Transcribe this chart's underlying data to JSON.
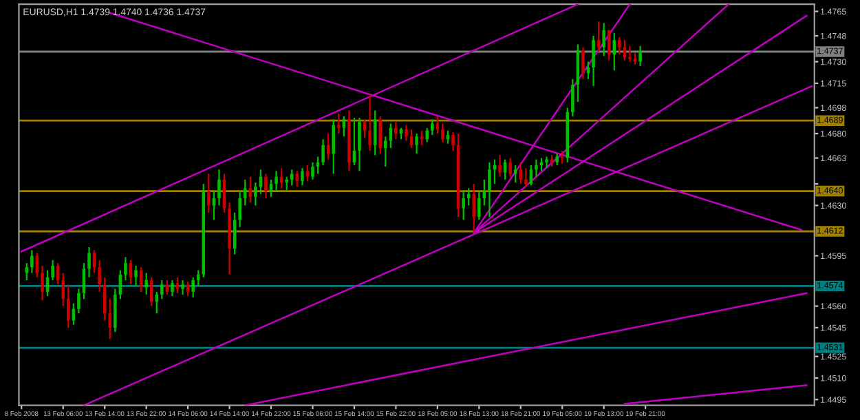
{
  "chart_data": {
    "type": "candlestick",
    "title": "EURUSD,H1 1.4739 1.4740 1.4736 1.4737",
    "categories": [
      "8 Feb 2008",
      null,
      null,
      null,
      null,
      null,
      null,
      null,
      "13 Feb 06:00",
      null,
      null,
      null,
      null,
      null,
      null,
      null,
      "13 Feb 14:00",
      null,
      null,
      null,
      null,
      null,
      null,
      null,
      "13 Feb 22:00",
      null,
      null,
      null,
      null,
      null,
      null,
      null,
      "14 Feb 06:00",
      null,
      null,
      null,
      null,
      null,
      null,
      null,
      "14 Feb 14:00",
      null,
      null,
      null,
      null,
      null,
      null,
      null,
      "14 Feb 22:00",
      null,
      null,
      null,
      null,
      null,
      null,
      null,
      "15 Feb 06:00",
      null,
      null,
      null,
      null,
      null,
      null,
      null,
      "15 Feb 14:00",
      null,
      null,
      null,
      null,
      null,
      null,
      null,
      "15 Feb 22:00",
      null,
      null,
      null,
      null,
      null,
      null,
      null,
      "18 Feb 05:00",
      null,
      null,
      null,
      null,
      null,
      null,
      null,
      "18 Feb 13:00",
      null,
      null,
      null,
      null,
      null,
      null,
      null,
      "18 Feb 21:00",
      null,
      null,
      null,
      null,
      null,
      null,
      null,
      "19 Feb 05:00",
      null,
      null,
      null,
      null,
      null,
      null,
      null,
      "19 Feb 13:00",
      null,
      null,
      null,
      null,
      null,
      null,
      null,
      "19 Feb 21:00",
      null,
      null,
      null,
      null,
      null,
      null,
      null,
      null,
      null,
      null,
      null,
      null,
      null,
      null,
      null,
      null,
      null,
      null,
      null,
      null,
      null,
      null,
      null,
      null,
      null,
      null,
      null,
      null,
      null,
      null,
      null,
      null
    ],
    "ohlc": [
      null,
      [
        1.4583,
        1.459,
        1.4578,
        1.4587
      ],
      [
        1.4587,
        1.4599,
        1.4583,
        1.4595
      ],
      [
        1.4595,
        1.4597,
        1.458,
        1.4583
      ],
      [
        1.4583,
        1.4588,
        1.4564,
        1.457
      ],
      [
        1.457,
        1.4585,
        1.4567,
        1.458
      ],
      [
        1.458,
        1.4592,
        1.4578,
        1.4588
      ],
      [
        1.4588,
        1.459,
        1.4575,
        1.4578
      ],
      [
        1.4578,
        1.4583,
        1.456,
        1.4565
      ],
      [
        1.4565,
        1.4575,
        1.4545,
        1.455
      ],
      [
        1.455,
        1.4562,
        1.4547,
        1.4558
      ],
      [
        1.4558,
        1.4572,
        1.4555,
        1.4569
      ],
      [
        1.4569,
        1.459,
        1.4565,
        1.4586
      ],
      [
        1.4586,
        1.4601,
        1.458,
        1.4597
      ],
      [
        1.4597,
        1.4599,
        1.4583,
        1.4587
      ],
      [
        1.4587,
        1.4592,
        1.457,
        1.4575
      ],
      [
        1.4575,
        1.458,
        1.455,
        1.4555
      ],
      [
        1.4555,
        1.4565,
        1.4537,
        1.4545
      ],
      [
        1.4545,
        1.4572,
        1.4542,
        1.4568
      ],
      [
        1.4568,
        1.4585,
        1.4565,
        1.4582
      ],
      [
        1.4582,
        1.4594,
        1.4578,
        1.459
      ],
      [
        1.459,
        1.4592,
        1.4575,
        1.458
      ],
      [
        1.458,
        1.4588,
        1.4574,
        1.4585
      ],
      [
        1.4585,
        1.4587,
        1.457,
        1.4573
      ],
      [
        1.4573,
        1.4583,
        1.4568,
        1.4578
      ],
      [
        1.4578,
        1.458,
        1.456,
        1.4563
      ],
      [
        1.4563,
        1.457,
        1.4555,
        1.4568
      ],
      [
        1.4568,
        1.4578,
        1.4565,
        1.4575
      ],
      [
        1.4575,
        1.4578,
        1.4568,
        1.457
      ],
      [
        1.457,
        1.4578,
        1.4567,
        1.4576
      ],
      [
        1.4576,
        1.458,
        1.4569,
        1.4572
      ],
      [
        1.4572,
        1.4578,
        1.4568,
        1.4575
      ],
      [
        1.4575,
        1.4577,
        1.4567,
        1.457
      ],
      [
        1.457,
        1.458,
        1.4566,
        1.4578
      ],
      [
        1.4578,
        1.4585,
        1.4574,
        1.4582
      ],
      [
        1.4582,
        1.4645,
        1.458,
        1.464
      ],
      [
        1.464,
        1.4652,
        1.4625,
        1.463
      ],
      [
        1.463,
        1.464,
        1.462,
        1.4635
      ],
      [
        1.4635,
        1.4655,
        1.463,
        1.4648
      ],
      [
        1.4648,
        1.4652,
        1.4625,
        1.4628
      ],
      [
        1.4628,
        1.4632,
        1.4582,
        1.46
      ],
      [
        1.46,
        1.4625,
        1.4596,
        1.462
      ],
      [
        1.462,
        1.464,
        1.4615,
        1.4635
      ],
      [
        1.4635,
        1.4648,
        1.463,
        1.4642
      ],
      [
        1.4642,
        1.465,
        1.4632,
        1.4636
      ],
      [
        1.4636,
        1.4646,
        1.463,
        1.4643
      ],
      [
        1.4643,
        1.4655,
        1.4638,
        1.465
      ],
      [
        1.465,
        1.4652,
        1.4635,
        1.464
      ],
      [
        1.464,
        1.4648,
        1.4636,
        1.4645
      ],
      [
        1.4645,
        1.4654,
        1.464,
        1.465
      ],
      [
        1.465,
        1.4656,
        1.4642,
        1.4646
      ],
      [
        1.4646,
        1.465,
        1.464,
        1.4648
      ],
      [
        1.4648,
        1.4655,
        1.4644,
        1.4652
      ],
      [
        1.4652,
        1.4654,
        1.4643,
        1.4647
      ],
      [
        1.4647,
        1.4656,
        1.4644,
        1.4654
      ],
      [
        1.4654,
        1.4658,
        1.4647,
        1.465
      ],
      [
        1.465,
        1.466,
        1.4648,
        1.4657
      ],
      [
        1.4657,
        1.4664,
        1.4652,
        1.466
      ],
      [
        1.466,
        1.4676,
        1.4658,
        1.4672
      ],
      [
        1.4672,
        1.468,
        1.4662,
        1.4666
      ],
      [
        1.4666,
        1.469,
        1.4652,
        1.4686
      ],
      [
        1.4686,
        1.4694,
        1.468,
        1.4684
      ],
      [
        1.4684,
        1.4692,
        1.4678,
        1.469
      ],
      [
        1.469,
        1.4696,
        1.4654,
        1.466
      ],
      [
        1.466,
        1.4691,
        1.4658,
        1.4668
      ],
      [
        1.4668,
        1.4691,
        1.4654,
        1.4688
      ],
      [
        1.4688,
        1.469,
        1.4677,
        1.4682
      ],
      [
        1.4682,
        1.4707,
        1.4668,
        1.4672
      ],
      [
        1.4672,
        1.4696,
        1.4665,
        1.469
      ],
      [
        1.469,
        1.4692,
        1.4666,
        1.467
      ],
      [
        1.467,
        1.4678,
        1.4657,
        1.4675
      ],
      [
        1.4675,
        1.4687,
        1.467,
        1.4684
      ],
      [
        1.4684,
        1.4688,
        1.4676,
        1.468
      ],
      [
        1.468,
        1.4684,
        1.4676,
        1.4683
      ],
      [
        1.4683,
        1.4686,
        1.4675,
        1.4678
      ],
      [
        1.4678,
        1.4683,
        1.467,
        1.4672
      ],
      [
        1.4672,
        1.468,
        1.4666,
        1.4678
      ],
      [
        1.4678,
        1.4682,
        1.4672,
        1.4676
      ],
      [
        1.4676,
        1.4684,
        1.4674,
        1.4682
      ],
      [
        1.4682,
        1.469,
        1.4679,
        1.4687
      ],
      [
        1.4687,
        1.4692,
        1.468,
        1.4683
      ],
      [
        1.4683,
        1.4687,
        1.4674,
        1.4676
      ],
      [
        1.4676,
        1.4682,
        1.4673,
        1.4679
      ],
      [
        1.4679,
        1.4681,
        1.4668,
        1.4672
      ],
      [
        1.4672,
        1.468,
        1.4622,
        1.4628
      ],
      [
        1.4628,
        1.464,
        1.462,
        1.4635
      ],
      [
        1.4635,
        1.4642,
        1.463,
        1.4638
      ],
      [
        1.4638,
        1.4645,
        1.4611,
        1.4622
      ],
      [
        1.4622,
        1.464,
        1.462,
        1.4635
      ],
      [
        1.4635,
        1.4648,
        1.463,
        1.464
      ],
      [
        1.464,
        1.466,
        1.4622,
        1.4655
      ],
      [
        1.4655,
        1.4662,
        1.4645,
        1.4658
      ],
      [
        1.4658,
        1.4665,
        1.465,
        1.4653
      ],
      [
        1.4653,
        1.4662,
        1.4648,
        1.466
      ],
      [
        1.466,
        1.4663,
        1.465,
        1.4652
      ],
      [
        1.4652,
        1.4658,
        1.4646,
        1.4655
      ],
      [
        1.4655,
        1.466,
        1.4645,
        1.4648
      ],
      [
        1.4648,
        1.4656,
        1.4643,
        1.4645
      ],
      [
        1.4645,
        1.4658,
        1.4644,
        1.4655
      ],
      [
        1.4655,
        1.4662,
        1.465,
        1.4658
      ],
      [
        1.4658,
        1.4663,
        1.4654,
        1.466
      ],
      [
        1.466,
        1.4664,
        1.4656,
        1.4662
      ],
      [
        1.4662,
        1.4665,
        1.4657,
        1.466
      ],
      [
        1.466,
        1.4666,
        1.4658,
        1.4664
      ],
      [
        1.4664,
        1.4668,
        1.4659,
        1.4663
      ],
      [
        1.4663,
        1.4698,
        1.466,
        1.4695
      ],
      [
        1.4695,
        1.4718,
        1.4692,
        1.4714
      ],
      [
        1.4714,
        1.4742,
        1.4702,
        1.4738
      ],
      [
        1.4738,
        1.474,
        1.4718,
        1.4722
      ],
      [
        1.4722,
        1.473,
        1.4718,
        1.4726
      ],
      [
        1.4726,
        1.4748,
        1.4713,
        1.4745
      ],
      [
        1.4745,
        1.4758,
        1.4737,
        1.474
      ],
      [
        1.474,
        1.4757,
        1.4734,
        1.4752
      ],
      [
        1.4752,
        1.4752,
        1.4731,
        1.4735
      ],
      [
        1.4735,
        1.475,
        1.4724,
        1.4745
      ],
      [
        1.4745,
        1.4747,
        1.4735,
        1.474
      ],
      [
        1.474,
        1.4745,
        1.4731,
        1.4733
      ],
      [
        1.4733,
        1.4741,
        1.473,
        1.4732
      ],
      [
        1.4732,
        1.4736,
        1.4728,
        1.473
      ],
      [
        1.473,
        1.4741,
        1.4727,
        1.4737
      ],
      null,
      null,
      null,
      null,
      null,
      null,
      null,
      null,
      null,
      null,
      null,
      null,
      null,
      null,
      null,
      null,
      null,
      null,
      null,
      null,
      null,
      null,
      null,
      null,
      null,
      null,
      null,
      null,
      null,
      null,
      null,
      null,
      null
    ],
    "colors": [
      null,
      "#00c000",
      "#00c000",
      "#d00000",
      "#d00000",
      "#00c000",
      "#00c000",
      "#d00000",
      "#d00000",
      "#d00000",
      "#00c000",
      "#00c000",
      "#00c000",
      "#00c000",
      "#d00000",
      "#d00000",
      "#d00000",
      "#d00000",
      "#00c000",
      "#00c000",
      "#00c000",
      "#d00000",
      "#00c000",
      "#d00000",
      "#00c000",
      "#d00000",
      "#00c000",
      "#00c000",
      "#d00000",
      "#00c000",
      "#d00000",
      "#00c000",
      "#d00000",
      "#00c000",
      "#00c000",
      "#00c000",
      "#d00000",
      "#00c000",
      "#00c000",
      "#d00000",
      "#d00000",
      "#00c000",
      "#00c000",
      "#00c000",
      "#d00000",
      "#00c000",
      "#00c000",
      "#d00000",
      "#00c000",
      "#00c000",
      "#d00000",
      "#00c000",
      "#00c000",
      "#d00000",
      "#00c000",
      "#d00000",
      "#00c000",
      "#00c000",
      "#00c000",
      "#d00000",
      "#00c000",
      "#d00000",
      "#00c000",
      "#d00000",
      "#00c000",
      "#00c000",
      "#d00000",
      "#d00000",
      "#00c000",
      "#d00000",
      "#00c000",
      "#00c000",
      "#d00000",
      "#00c000",
      "#d00000",
      "#d00000",
      "#00c000",
      "#d00000",
      "#00c000",
      "#00c000",
      "#d00000",
      "#d00000",
      "#00c000",
      "#d00000",
      "#d00000",
      "#00c000",
      "#00c000",
      "#d00000",
      "#00c000",
      "#00c000",
      "#00c000",
      "#00c000",
      "#d00000",
      "#00c000",
      "#d00000",
      "#00c000",
      "#d00000",
      "#d00000",
      "#00c000",
      "#00c000",
      "#00c000",
      "#00c000",
      "#d00000",
      "#00c000",
      "#d00000",
      "#00c000",
      "#00c000",
      "#00c000",
      "#d00000",
      "#00c000",
      "#00c000",
      "#d00000",
      "#00c000",
      "#d00000",
      "#00c000",
      "#d00000",
      "#d00000",
      "#d00000",
      "#d00000",
      "#00c000",
      null,
      null,
      null,
      null,
      null,
      null,
      null,
      null,
      null,
      null,
      null,
      null,
      null,
      null,
      null,
      null,
      null,
      null,
      null,
      null,
      null,
      null,
      null,
      null,
      null,
      null,
      null,
      null,
      null,
      null,
      null,
      null,
      null
    ],
    "series": [
      {
        "type": "line",
        "color": "#c000c0",
        "values": [
          null,
          null,
          null,
          null,
          null,
          null,
          null,
          null,
          null,
          null,
          null,
          null,
          null,
          null,
          null,
          null,
          null,
          1.4764,
          null,
          null,
          null,
          null,
          null,
          null,
          null,
          null,
          null,
          null,
          null,
          null,
          null,
          null,
          null,
          null,
          null,
          null,
          null,
          null,
          null,
          null,
          null,
          null,
          null,
          null,
          null,
          null,
          null,
          null,
          null,
          null,
          null,
          null,
          null,
          null,
          null,
          null,
          null,
          null,
          null,
          null,
          null,
          null,
          null,
          null,
          null,
          null,
          null,
          null,
          null,
          null,
          null,
          null,
          null,
          null,
          null,
          null,
          null,
          null,
          null,
          null,
          null,
          null,
          null,
          null,
          null,
          null,
          null,
          null,
          null,
          null,
          null,
          null,
          null,
          null,
          null,
          null,
          null,
          null,
          null,
          null,
          null,
          null,
          null,
          null,
          null,
          null,
          null,
          null,
          null,
          null,
          null,
          null,
          null,
          null,
          null,
          null,
          null,
          null,
          null,
          null,
          null,
          null,
          null,
          null,
          null,
          null,
          null,
          null,
          null,
          null,
          null,
          null,
          null,
          null,
          null,
          null,
          null,
          null,
          null,
          null,
          null,
          null,
          null,
          null,
          null,
          null,
          null,
          null,
          null,
          null,
          1.4613,
          null,
          null
        ]
      },
      {
        "type": "line",
        "color": "#c000c0",
        "values": [
          1.4598,
          null,
          null,
          null,
          null,
          null,
          null,
          null,
          null,
          null,
          null,
          null,
          null,
          null,
          null,
          null,
          null,
          null,
          null,
          null,
          null,
          null,
          null,
          null,
          null,
          null,
          null,
          null,
          null,
          null,
          null,
          null,
          null,
          null,
          null,
          null,
          null,
          null,
          null,
          null,
          null,
          null,
          null,
          null,
          null,
          null,
          null,
          null,
          null,
          null,
          null,
          null,
          null,
          null,
          null,
          null,
          null,
          null,
          null,
          null,
          null,
          null,
          null,
          null,
          null,
          null,
          null,
          null,
          null,
          null,
          null,
          null,
          null,
          null,
          null,
          null,
          null,
          null,
          null,
          null,
          null,
          null,
          null,
          null,
          null,
          null,
          null,
          null,
          null,
          null,
          null,
          null,
          null,
          null,
          null,
          null,
          null,
          null,
          null,
          null,
          null,
          null,
          null,
          null,
          null,
          null,
          null,
          1.477,
          null,
          null,
          null,
          null,
          null,
          null,
          null,
          null,
          null,
          null,
          null,
          null,
          null,
          null,
          null,
          null,
          null,
          null,
          null,
          null,
          null,
          null,
          null,
          null,
          null,
          null,
          null,
          null,
          null,
          null,
          null,
          null,
          null,
          null,
          null,
          null,
          null,
          null,
          null,
          null,
          null,
          null,
          null,
          null,
          null
        ]
      },
      {
        "type": "line",
        "color": "#c000c0",
        "values": [
          null,
          null,
          null,
          null,
          null,
          null,
          null,
          null,
          null,
          null,
          null,
          null,
          1.4491,
          null,
          null,
          null,
          null,
          null,
          null,
          null,
          null,
          null,
          null,
          null,
          null,
          null,
          null,
          null,
          null,
          null,
          null,
          null,
          null,
          null,
          null,
          null,
          null,
          null,
          null,
          null,
          null,
          null,
          null,
          null,
          null,
          null,
          null,
          null,
          null,
          null,
          null,
          null,
          null,
          null,
          null,
          null,
          null,
          null,
          null,
          null,
          null,
          null,
          null,
          null,
          null,
          null,
          null,
          null,
          null,
          null,
          null,
          null,
          null,
          null,
          null,
          null,
          null,
          null,
          null,
          null,
          null,
          null,
          null,
          null,
          null,
          null,
          null,
          null,
          null,
          null,
          null,
          null,
          null,
          null,
          null,
          null,
          null,
          null,
          null,
          null,
          null,
          null,
          null,
          null,
          null,
          null,
          null,
          null,
          null,
          null,
          null,
          null,
          null,
          null,
          null,
          null,
          null,
          null,
          null,
          null,
          null,
          null,
          null,
          null,
          null,
          null,
          null,
          null,
          null,
          null,
          null,
          null,
          null,
          null,
          null,
          null,
          null,
          null,
          null,
          null,
          null,
          null,
          null,
          null,
          null,
          null,
          null,
          null,
          null,
          null,
          null,
          null,
          1.4713
        ]
      },
      {
        "type": "line",
        "color": "#c000c0",
        "values": [
          null,
          null,
          null,
          null,
          null,
          null,
          null,
          null,
          null,
          null,
          null,
          null,
          null,
          null,
          null,
          null,
          null,
          null,
          null,
          null,
          null,
          null,
          null,
          null,
          null,
          null,
          null,
          null,
          null,
          null,
          null,
          null,
          null,
          null,
          null,
          null,
          null,
          null,
          null,
          null,
          null,
          null,
          null,
          null,
          null,
          null,
          null,
          null,
          null,
          null,
          null,
          null,
          null,
          null,
          null,
          null,
          null,
          null,
          null,
          null,
          null,
          null,
          null,
          null,
          null,
          null,
          null,
          null,
          null,
          null,
          null,
          null,
          null,
          null,
          null,
          null,
          null,
          null,
          null,
          null,
          null,
          null,
          null,
          null,
          null,
          null,
          null,
          1.4611,
          null,
          null,
          null,
          null,
          null,
          null,
          null,
          null,
          null,
          null,
          null,
          null,
          null,
          null,
          null,
          null,
          null,
          null,
          null,
          null,
          null,
          null,
          null,
          null,
          null,
          null,
          null,
          null,
          null,
          1.477,
          null,
          null,
          null,
          null,
          null,
          null,
          null,
          null,
          null,
          null,
          null,
          null,
          null,
          null,
          null,
          null,
          null,
          null,
          null,
          null,
          null,
          null,
          null,
          null,
          null,
          null,
          null,
          null,
          null,
          null,
          null,
          null,
          null,
          null,
          null
        ]
      },
      {
        "type": "line",
        "color": "#c000c0",
        "values": [
          null,
          null,
          null,
          null,
          null,
          null,
          null,
          null,
          null,
          null,
          null,
          null,
          null,
          null,
          null,
          null,
          null,
          null,
          null,
          null,
          null,
          null,
          null,
          null,
          null,
          null,
          null,
          null,
          null,
          null,
          null,
          null,
          null,
          null,
          null,
          null,
          null,
          null,
          null,
          null,
          null,
          null,
          null,
          null,
          null,
          null,
          null,
          null,
          null,
          null,
          null,
          null,
          null,
          null,
          null,
          null,
          null,
          null,
          null,
          null,
          null,
          null,
          null,
          null,
          null,
          null,
          null,
          null,
          null,
          null,
          null,
          null,
          null,
          null,
          null,
          null,
          null,
          null,
          null,
          null,
          null,
          null,
          null,
          null,
          null,
          null,
          null,
          1.4611,
          null,
          null,
          null,
          null,
          null,
          null,
          null,
          null,
          null,
          null,
          null,
          null,
          null,
          null,
          null,
          null,
          null,
          null,
          null,
          null,
          null,
          null,
          null,
          null,
          null,
          null,
          null,
          null,
          null,
          null,
          null,
          null,
          null,
          null,
          null,
          null,
          null,
          null,
          null,
          null,
          null,
          null,
          null,
          null,
          null,
          null,
          null,
          null,
          1.477,
          null,
          null,
          null,
          null,
          null,
          null,
          null,
          null,
          null,
          null,
          null,
          null,
          null,
          null,
          null,
          null
        ]
      },
      {
        "type": "line",
        "color": "#c000c0",
        "values": [
          null,
          null,
          null,
          null,
          null,
          null,
          null,
          null,
          null,
          null,
          null,
          null,
          null,
          null,
          null,
          null,
          null,
          null,
          null,
          null,
          null,
          null,
          null,
          null,
          null,
          null,
          null,
          null,
          null,
          null,
          null,
          null,
          null,
          null,
          null,
          null,
          null,
          null,
          null,
          null,
          null,
          null,
          null,
          null,
          null,
          null,
          null,
          null,
          null,
          null,
          null,
          null,
          null,
          null,
          null,
          null,
          null,
          null,
          null,
          null,
          null,
          null,
          null,
          null,
          null,
          null,
          null,
          null,
          null,
          null,
          null,
          null,
          null,
          null,
          null,
          null,
          null,
          null,
          null,
          null,
          null,
          null,
          null,
          null,
          null,
          null,
          null,
          1.4611,
          null,
          null,
          null,
          null,
          null,
          null,
          null,
          null,
          null,
          null,
          null,
          null,
          null,
          null,
          null,
          null,
          null,
          null,
          null,
          null,
          null,
          null,
          null,
          null,
          null,
          null,
          null,
          null,
          null,
          null,
          null,
          null,
          null,
          null,
          null,
          null,
          null,
          null,
          null,
          null,
          null,
          null,
          null,
          null,
          null,
          null,
          null,
          null,
          null,
          null,
          null,
          null,
          null,
          null,
          null,
          null,
          null,
          null,
          null,
          null,
          null,
          null,
          null,
          1.4762,
          null
        ]
      },
      {
        "type": "line",
        "color": "#c000c0",
        "values": [
          null,
          null,
          null,
          null,
          null,
          null,
          null,
          null,
          null,
          null,
          null,
          null,
          null,
          null,
          null,
          null,
          null,
          null,
          null,
          null,
          null,
          null,
          null,
          null,
          null,
          null,
          null,
          null,
          null,
          null,
          null,
          null,
          null,
          null,
          null,
          null,
          null,
          null,
          null,
          null,
          null,
          null,
          null,
          1.4491,
          null,
          null,
          null,
          null,
          null,
          null,
          null,
          null,
          null,
          null,
          null,
          null,
          null,
          null,
          null,
          null,
          null,
          null,
          null,
          null,
          null,
          null,
          null,
          null,
          null,
          null,
          null,
          null,
          null,
          null,
          null,
          null,
          null,
          null,
          null,
          null,
          null,
          null,
          null,
          null,
          null,
          null,
          null,
          null,
          null,
          null,
          null,
          null,
          null,
          null,
          null,
          null,
          null,
          null,
          null,
          null,
          null,
          null,
          null,
          null,
          null,
          null,
          null,
          null,
          null,
          null,
          null,
          null,
          null,
          null,
          null,
          null,
          null,
          null,
          null,
          null,
          null,
          null,
          null,
          null,
          null,
          null,
          null,
          null,
          null,
          null,
          null,
          null,
          null,
          null,
          null,
          null,
          null,
          null,
          null,
          null,
          null,
          null,
          null,
          null,
          null,
          null,
          null,
          null,
          null,
          null,
          null,
          1.4569,
          null
        ]
      },
      {
        "type": "line",
        "color": "#c000c0",
        "values": [
          null,
          null,
          null,
          null,
          null,
          null,
          null,
          null,
          null,
          null,
          null,
          null,
          null,
          null,
          null,
          null,
          null,
          null,
          null,
          null,
          null,
          null,
          null,
          null,
          null,
          null,
          null,
          null,
          null,
          null,
          null,
          null,
          null,
          null,
          null,
          null,
          null,
          null,
          null,
          null,
          null,
          null,
          null,
          null,
          null,
          null,
          null,
          null,
          null,
          null,
          null,
          null,
          null,
          null,
          null,
          null,
          null,
          null,
          null,
          null,
          null,
          null,
          null,
          null,
          null,
          null,
          null,
          null,
          null,
          null,
          null,
          null,
          null,
          null,
          null,
          null,
          null,
          null,
          null,
          null,
          null,
          null,
          null,
          null,
          null,
          null,
          null,
          null,
          null,
          null,
          null,
          null,
          null,
          null,
          null,
          null,
          null,
          null,
          null,
          null,
          null,
          null,
          null,
          null,
          null,
          null,
          null,
          null,
          null,
          null,
          null,
          null,
          null,
          null,
          null,
          null,
          1.4492,
          null,
          null,
          null,
          null,
          null,
          null,
          null,
          null,
          null,
          null,
          null,
          null,
          null,
          null,
          null,
          null,
          null,
          null,
          null,
          null,
          null,
          null,
          null,
          null,
          null,
          null,
          null,
          null,
          null,
          null,
          null,
          null,
          null,
          null,
          1.4505,
          null
        ]
      }
    ],
    "ylim": [
      1.4491,
      1.477
    ],
    "yticks": [
      1.4765,
      1.4748,
      {
        "value": 1.473,
        "label": "1.4730"
      },
      1.4715,
      1.4698,
      {
        "value": 1.468,
        "label": "1.4680"
      },
      1.4663,
      {
        "value": 1.4645,
        "label": null
      },
      {
        "value": 1.463,
        "label": "1.4630"
      },
      1.4595,
      {
        "value": 1.456,
        "label": "1.4560"
      },
      1.4545,
      1.4525,
      {
        "value": 1.451,
        "label": "1.4510"
      },
      1.4495
    ],
    "ref_lines": [
      {
        "axis": "y",
        "value": 1.4737,
        "label": "1.4737",
        "color": "#808080"
      },
      {
        "axis": "y",
        "value": 1.4689,
        "label": "1.4689",
        "color": "#a08000"
      },
      {
        "axis": "y",
        "value": 1.464,
        "label": "1.4640",
        "color": "#a08000"
      },
      {
        "axis": "y",
        "value": 1.4612,
        "label": "1.4612",
        "color": "#a08000"
      },
      {
        "axis": "y",
        "value": 1.4574,
        "label": "1.4574",
        "color": "#008080"
      },
      {
        "axis": "y",
        "value": 1.4531,
        "label": "1.4531",
        "color": "#008080"
      }
    ],
    "grid": false
  }
}
